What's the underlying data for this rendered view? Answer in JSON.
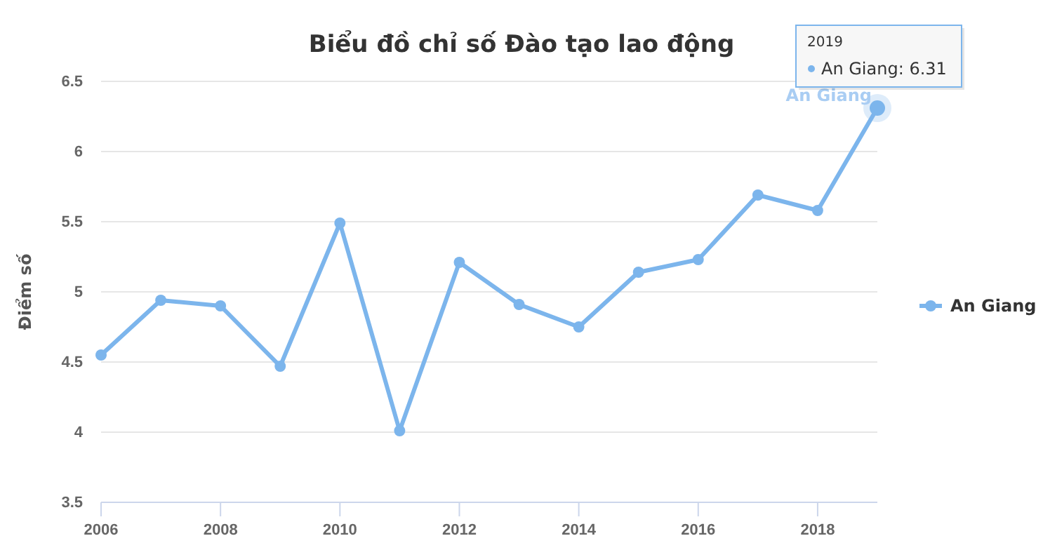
{
  "chart_data": {
    "type": "line",
    "title": "Biểu đồ chỉ số Đào tạo lao động",
    "ylabel": "Điểm số",
    "x": [
      2006,
      2007,
      2008,
      2009,
      2010,
      2011,
      2012,
      2013,
      2014,
      2015,
      2016,
      2017,
      2018,
      2019
    ],
    "series": [
      {
        "name": "An Giang",
        "color": "#7cb5ec",
        "values": [
          4.55,
          4.94,
          4.9,
          4.47,
          5.49,
          4.01,
          5.21,
          4.91,
          4.75,
          5.14,
          5.23,
          5.69,
          5.58,
          6.31
        ]
      }
    ],
    "xlim": [
      2006,
      2019
    ],
    "xticks": [
      2006,
      2008,
      2010,
      2012,
      2014,
      2016,
      2018
    ],
    "ylim": [
      3.5,
      6.5
    ],
    "yticks": [
      3.5,
      4,
      4.5,
      5,
      5.5,
      6,
      6.5
    ],
    "grid": "y",
    "legend": "right",
    "marker": "circle",
    "line_style": "solid",
    "annotations": [
      {
        "text": "An Giang",
        "x": 2019,
        "y": 6.31
      },
      "2019",
      "An Giang: 6.31"
    ]
  }
}
